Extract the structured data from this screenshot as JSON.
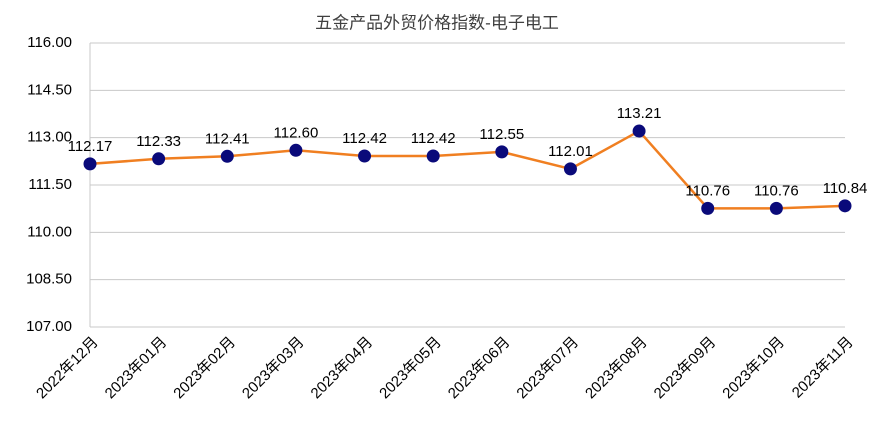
{
  "chart_data": {
    "type": "line",
    "title": "五金产品外贸价格指数-电子电工",
    "categories": [
      "2022年12月",
      "2023年01月",
      "2023年02月",
      "2023年03月",
      "2023年04月",
      "2023年05月",
      "2023年06月",
      "2023年07月",
      "2023年08月",
      "2023年09月",
      "2023年10月",
      "2023年11月"
    ],
    "series": [
      {
        "color": "#f07f21",
        "marker_color": "#0a0a7a",
        "values": [
          112.17,
          112.33,
          112.41,
          112.6,
          112.42,
          112.42,
          112.55,
          112.01,
          113.21,
          110.76,
          110.76,
          110.84
        ],
        "value_labels": [
          "112.17",
          "112.33",
          "112.41",
          "112.60",
          "112.42",
          "112.42",
          "112.55",
          "112.01",
          "113.21",
          "110.76",
          "110.76",
          "110.84"
        ]
      }
    ],
    "ylim": [
      107,
      116
    ],
    "yticks": [
      {
        "value": 107,
        "label": "107.00"
      },
      {
        "value": 108.5,
        "label": "108.50"
      },
      {
        "value": 110,
        "label": "110.00"
      },
      {
        "value": 111.5,
        "label": "111.50"
      },
      {
        "value": 113,
        "label": "113.00"
      },
      {
        "value": 114.5,
        "label": "114.50"
      },
      {
        "value": 116,
        "label": "116.00"
      }
    ],
    "grid": true
  }
}
